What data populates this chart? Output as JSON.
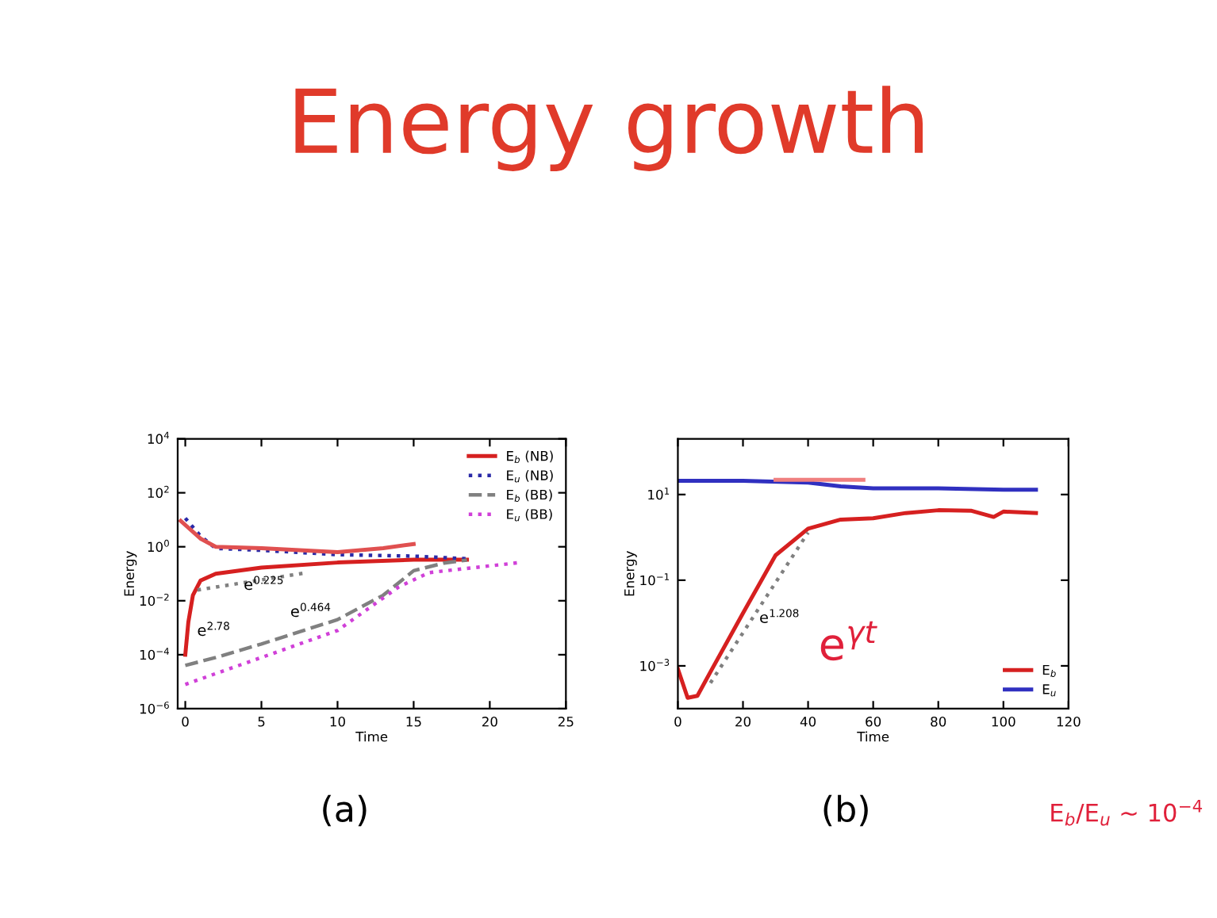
{
  "chart_data": [
    {
      "type": "line",
      "title": "Energy growth",
      "xlabel": "Time",
      "ylabel": "Energy",
      "log": "y",
      "legend": "top right",
      "grid": false,
      "xlim": [
        -0.5,
        25
      ],
      "xticks": [
        0,
        5,
        10,
        15,
        20,
        25
      ],
      "ylim": [
        1e-06,
        10000
      ],
      "yticks": [
        {
          "value": 1e-06,
          "label": "10$^{−6}$"
        },
        {
          "value": 0.0001,
          "label": "10$^{−4}$"
        },
        {
          "value": 0.01,
          "label": "10$^{−2}$"
        },
        {
          "value": 1,
          "label": "10$^{0}$"
        },
        {
          "value": 100,
          "label": "10$^{2}$"
        },
        {
          "value": 10000,
          "label": "10$^{4}$"
        }
      ],
      "series": [
        {
          "name": "E$_{b}$ (NB)",
          "color": "#d62020",
          "line_style": "solid",
          "x": [
            0,
            0.2,
            0.5,
            1,
            2,
            5,
            10,
            15,
            18.5
          ],
          "values": [
            0.0001,
            0.0016,
            0.016,
            0.056,
            0.1,
            0.17,
            0.26,
            0.33,
            0.33
          ]
        },
        {
          "name": "E$_{u}$ (NB)",
          "color": "#2a2aa8",
          "line_style": "dotted",
          "x": [
            0,
            1,
            2,
            5,
            10,
            15,
            18.5
          ],
          "values": [
            11.5,
            2.5,
            0.87,
            0.74,
            0.51,
            0.45,
            0.36
          ]
        },
        {
          "name": "E$_{b}$ (BB)",
          "color": "#808080",
          "line_style": "dashed",
          "x": [
            0,
            2,
            5,
            10,
            13,
            15,
            17,
            18.5
          ],
          "values": [
            4e-05,
            7.9e-05,
            0.00025,
            0.002,
            0.016,
            0.13,
            0.25,
            0.32
          ]
        },
        {
          "name": "E$_{u}$ (BB)",
          "color": "#d040d8",
          "line_style": "dotted",
          "x": [
            0,
            2,
            5,
            10,
            14,
            16,
            19,
            22
          ],
          "values": [
            7.9e-06,
            2e-05,
            7.9e-05,
            0.00079,
            0.032,
            0.11,
            0.17,
            0.26
          ]
        },
        {
          "color": "#e05050",
          "line_style": "solid",
          "x": [
            -0.3,
            1,
            2,
            5,
            10,
            13,
            15
          ],
          "values": [
            9.1,
            2,
            1,
            0.89,
            0.63,
            0.89,
            1.26
          ]
        },
        {
          "color": "#808080",
          "line_style": "dotted",
          "x": [
            0.8,
            8
          ],
          "values": [
            0.025,
            0.11
          ]
        }
      ],
      "annotations": [
        "e$^{2.78}$",
        "e$^{0.225}$",
        "e$^{0.464}$",
        "(a)"
      ]
    },
    {
      "type": "line",
      "xlabel": "Time",
      "ylabel": "Energy",
      "log": "y",
      "legend": "bottom right",
      "grid": false,
      "xlim": [
        0,
        120
      ],
      "xticks": [
        0,
        20,
        40,
        60,
        80,
        100,
        120
      ],
      "ylim": [
        0.0001,
        200
      ],
      "yticks": [
        {
          "value": 0.001,
          "label": "10$^{−3}$"
        },
        {
          "value": 0.1,
          "label": "10$^{−1}$"
        },
        {
          "value": 10,
          "label": "10$^{1}$"
        }
      ],
      "series": [
        {
          "name": "E$_{b}$",
          "color": "#d62020",
          "line_style": "solid",
          "x": [
            0,
            3,
            6,
            10,
            20,
            30,
            40,
            50,
            60,
            70,
            80,
            90,
            97,
            100,
            110
          ],
          "values": [
            0.00085,
            0.00018,
            0.0002,
            0.00072,
            0.017,
            0.38,
            1.6,
            2.6,
            2.8,
            3.7,
            4.3,
            4.2,
            3,
            4,
            3.7
          ]
        },
        {
          "name": "E$_{u}$",
          "color": "#3030c0",
          "line_style": "solid",
          "x": [
            0,
            20,
            40,
            50,
            60,
            80,
            100,
            110
          ],
          "values": [
            21,
            21,
            19,
            15.5,
            14,
            14,
            13,
            13
          ]
        },
        {
          "color": "#f08080",
          "line_style": "solid",
          "x": [
            30,
            57
          ],
          "values": [
            22,
            22
          ]
        },
        {
          "color": "#808080",
          "line_style": "dotted",
          "x": [
            10,
            40
          ],
          "values": [
            0.0004,
            1.3
          ]
        }
      ],
      "annotations": [
        {
          "text": "e$^{1.208}$",
          "x": 25,
          "y": 0.01
        },
        "e$^{γt}$",
        "(b)",
        "E$_{b}$/E$_{u}$ ~ 10$^{−4}$"
      ]
    }
  ]
}
